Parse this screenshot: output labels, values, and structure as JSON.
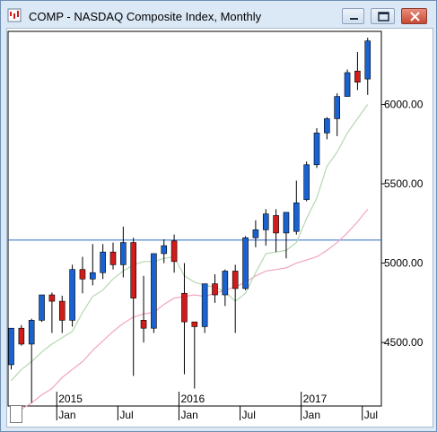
{
  "window": {
    "title": "COMP - NASDAQ Composite Index, Monthly"
  },
  "controls": {
    "minimize_icon": "minimize-icon",
    "maximize_icon": "maximize-icon",
    "close_icon": "close-icon"
  },
  "colors": {
    "up_candle": "#1a62d0",
    "down_candle": "#d21b1b",
    "ma_short": "#b5d8b0",
    "ma_long": "#f2a4bf",
    "horizontal_line": "#2f6cc0"
  },
  "chart_data": {
    "type": "candlestick",
    "y_ticks": [
      "6000.00",
      "5500.00",
      "5000.00",
      "4500.00"
    ],
    "y_tick_values": [
      6000,
      5500,
      5000,
      4500
    ],
    "ylim": [
      4100,
      6460
    ],
    "x_year_labels": [
      "2015",
      "2016",
      "2017"
    ],
    "x_month_labels": [
      "Jan",
      "Jul",
      "Jan",
      "Jul",
      "Jan",
      "Jul"
    ],
    "horizontal_line_value": 5145,
    "candles": [
      {
        "month": "2014-08",
        "o": 4360,
        "h": 4590,
        "l": 4330,
        "c": 4590
      },
      {
        "month": "2014-09",
        "o": 4590,
        "h": 4610,
        "l": 4480,
        "c": 4490
      },
      {
        "month": "2014-10",
        "o": 4490,
        "h": 4650,
        "l": 4120,
        "c": 4640
      },
      {
        "month": "2014-11",
        "o": 4640,
        "h": 4800,
        "l": 4630,
        "c": 4800
      },
      {
        "month": "2014-12",
        "o": 4800,
        "h": 4815,
        "l": 4560,
        "c": 4760
      },
      {
        "month": "2015-01",
        "o": 4760,
        "h": 4795,
        "l": 4560,
        "c": 4640
      },
      {
        "month": "2015-02",
        "o": 4640,
        "h": 4990,
        "l": 4600,
        "c": 4960
      },
      {
        "month": "2015-03",
        "o": 4960,
        "h": 5040,
        "l": 4810,
        "c": 4900
      },
      {
        "month": "2015-04",
        "o": 4900,
        "h": 5120,
        "l": 4860,
        "c": 4940
      },
      {
        "month": "2015-05",
        "o": 4940,
        "h": 5120,
        "l": 4900,
        "c": 5070
      },
      {
        "month": "2015-06",
        "o": 5070,
        "h": 5130,
        "l": 4960,
        "c": 4990
      },
      {
        "month": "2015-07",
        "o": 4990,
        "h": 5230,
        "l": 4910,
        "c": 5130
      },
      {
        "month": "2015-08",
        "o": 5130,
        "h": 5160,
        "l": 4290,
        "c": 4780
      },
      {
        "month": "2015-09",
        "o": 4640,
        "h": 4920,
        "l": 4500,
        "c": 4590
      },
      {
        "month": "2015-10",
        "o": 4590,
        "h": 5060,
        "l": 4560,
        "c": 5060
      },
      {
        "month": "2015-11",
        "o": 5060,
        "h": 5150,
        "l": 5000,
        "c": 5110
      },
      {
        "month": "2015-12",
        "o": 5140,
        "h": 5180,
        "l": 4940,
        "c": 5010
      },
      {
        "month": "2016-01",
        "o": 4810,
        "h": 5000,
        "l": 4300,
        "c": 4630
      },
      {
        "month": "2016-02",
        "o": 4630,
        "h": 4610,
        "l": 4210,
        "c": 4600
      },
      {
        "month": "2016-03",
        "o": 4600,
        "h": 4870,
        "l": 4560,
        "c": 4870
      },
      {
        "month": "2016-04",
        "o": 4870,
        "h": 4930,
        "l": 4750,
        "c": 4800
      },
      {
        "month": "2016-05",
        "o": 4800,
        "h": 4960,
        "l": 4730,
        "c": 4950
      },
      {
        "month": "2016-06",
        "o": 4950,
        "h": 4990,
        "l": 4560,
        "c": 4840
      },
      {
        "month": "2016-07",
        "o": 4840,
        "h": 5170,
        "l": 4830,
        "c": 5160
      },
      {
        "month": "2016-08",
        "o": 5160,
        "h": 5270,
        "l": 5100,
        "c": 5210
      },
      {
        "month": "2016-09",
        "o": 5210,
        "h": 5340,
        "l": 5110,
        "c": 5310
      },
      {
        "month": "2016-10",
        "o": 5300,
        "h": 5340,
        "l": 5070,
        "c": 5190
      },
      {
        "month": "2016-11",
        "o": 5190,
        "h": 5310,
        "l": 5030,
        "c": 5320
      },
      {
        "month": "2016-12",
        "o": 5200,
        "h": 5520,
        "l": 5180,
        "c": 5380
      },
      {
        "month": "2017-01",
        "o": 5400,
        "h": 5640,
        "l": 5390,
        "c": 5620
      },
      {
        "month": "2017-02",
        "o": 5620,
        "h": 5850,
        "l": 5600,
        "c": 5820
      },
      {
        "month": "2017-03",
        "o": 5820,
        "h": 5920,
        "l": 5780,
        "c": 5910
      },
      {
        "month": "2017-04",
        "o": 5910,
        "h": 6070,
        "l": 5800,
        "c": 6050
      },
      {
        "month": "2017-05",
        "o": 6050,
        "h": 6220,
        "l": 6060,
        "c": 6200
      },
      {
        "month": "2017-06",
        "o": 6210,
        "h": 6330,
        "l": 6090,
        "c": 6140
      },
      {
        "month": "2017-07",
        "o": 6160,
        "h": 6420,
        "l": 6060,
        "c": 6400
      }
    ],
    "ma_short": [
      4260,
      4330,
      4380,
      4440,
      4490,
      4530,
      4570,
      4690,
      4790,
      4830,
      4900,
      4950,
      4990,
      5010,
      5010,
      5030,
      5040,
      4920,
      4880,
      4860,
      4850,
      4820,
      4760,
      4810,
      4940,
      5060,
      5070,
      5080,
      5130,
      5280,
      5410,
      5610,
      5700,
      5820,
      5910,
      6000
    ],
    "ma_long": [
      4040,
      4080,
      4120,
      4170,
      4210,
      4280,
      4330,
      4380,
      4450,
      4510,
      4570,
      4620,
      4660,
      4680,
      4690,
      4740,
      4780,
      4790,
      4800,
      4790,
      4810,
      4830,
      4850,
      4880,
      4920,
      4950,
      4960,
      4970,
      5000,
      5020,
      5040,
      5080,
      5130,
      5190,
      5260,
      5340
    ]
  }
}
